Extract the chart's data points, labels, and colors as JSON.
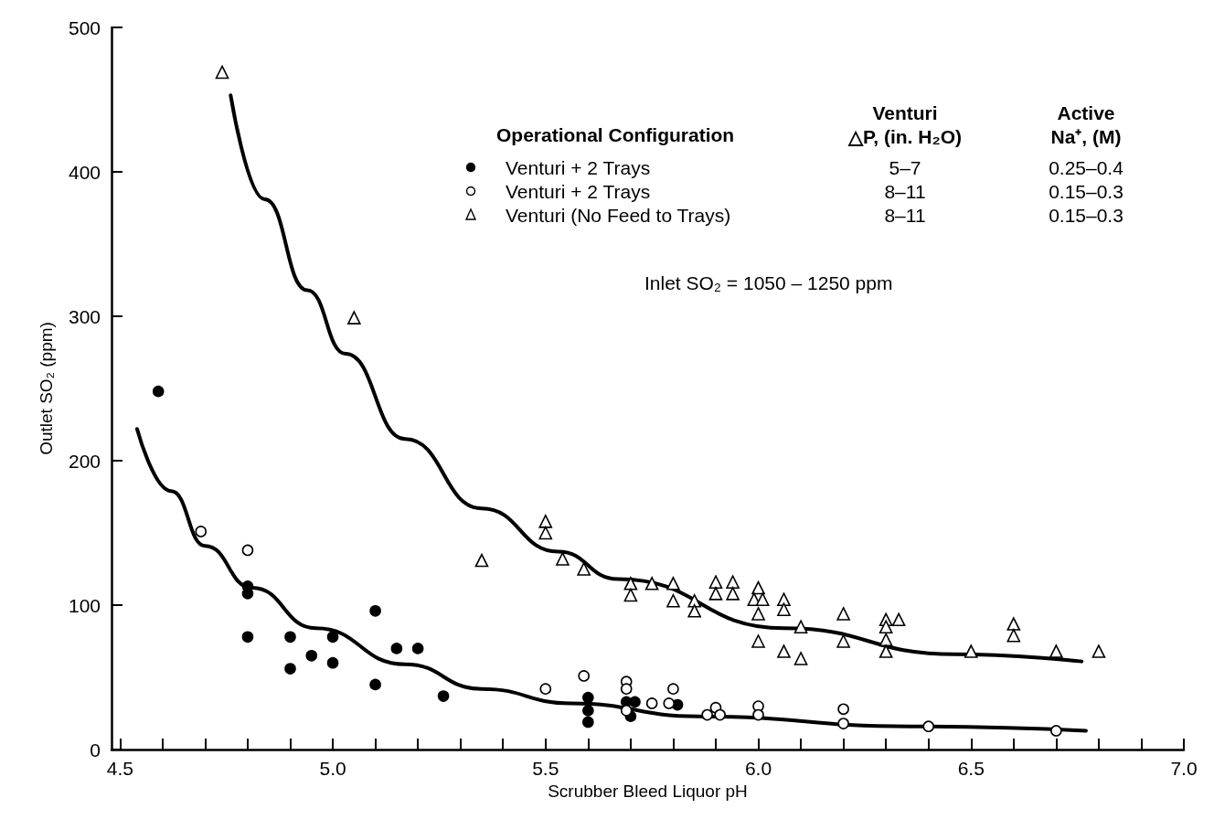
{
  "chart_data": {
    "type": "scatter",
    "xlabel": "Scrubber Bleed Liquor pH",
    "ylabel": "Outlet SO₂ (ppm)",
    "legend_title": "Operational Configuration",
    "legend": "top right",
    "annotations": [
      "Venturi\n△P, (in. H₂O)",
      "Active\nNa⁺, (M)",
      "5–7",
      "0.25–0.4",
      "8–11",
      "0.15–0.3",
      "8–11",
      "0.15–0.3",
      "Inlet SO₂ = 1050 – 1250 ppm"
    ],
    "xlim": [
      4.48,
      7.0
    ],
    "xticks": [
      {
        "value": 4.5,
        "label": "4.5"
      },
      {
        "value": 4.6,
        "label": null
      },
      {
        "value": 4.7,
        "label": null
      },
      {
        "value": 4.8,
        "label": null
      },
      {
        "value": 4.9,
        "label": null
      },
      {
        "value": 5.0,
        "label": "5.0"
      },
      {
        "value": 5.1,
        "label": null
      },
      {
        "value": 5.2,
        "label": null
      },
      {
        "value": 5.3,
        "label": null
      },
      {
        "value": 5.4,
        "label": null
      },
      {
        "value": 5.5,
        "label": "5.5"
      },
      {
        "value": 5.6,
        "label": null
      },
      {
        "value": 5.7,
        "label": null
      },
      {
        "value": 5.8,
        "label": null
      },
      {
        "value": 5.9,
        "label": null
      },
      {
        "value": 6.0,
        "label": "6.0"
      },
      {
        "value": 6.1,
        "label": null
      },
      {
        "value": 6.2,
        "label": null
      },
      {
        "value": 6.3,
        "label": null
      },
      {
        "value": 6.4,
        "label": null
      },
      {
        "value": 6.5,
        "label": "6.5"
      },
      {
        "value": 6.6,
        "label": null
      },
      {
        "value": 6.7,
        "label": null
      },
      {
        "value": 6.8,
        "label": null
      },
      {
        "value": 6.9,
        "label": null
      },
      {
        "value": 7.0,
        "label": "7.0"
      }
    ],
    "ylim": [
      0,
      500
    ],
    "yticks": [
      0,
      100,
      200,
      300,
      400,
      500
    ],
    "series": [
      {
        "name": "Venturi + 2 Trays",
        "color": "#000000",
        "marker": "circle",
        "x": [
          4.59,
          4.8,
          4.8,
          4.8,
          4.9,
          4.9,
          4.95,
          5.0,
          5.0,
          5.1,
          5.1,
          5.15,
          5.2,
          5.26,
          5.6,
          5.6,
          5.6,
          5.69,
          5.71,
          5.7,
          5.81
        ],
        "values": [
          248,
          113,
          108,
          78,
          78,
          56,
          65,
          78,
          60,
          96,
          45,
          70,
          70,
          37,
          36,
          27,
          19,
          33,
          33,
          23,
          31
        ]
      },
      {
        "name": "Venturi + 2 Trays",
        "color": "#ffffff",
        "marker": "circle",
        "x": [
          4.69,
          4.8,
          5.5,
          5.59,
          5.69,
          5.69,
          5.69,
          5.75,
          5.79,
          5.8,
          5.88,
          5.9,
          5.91,
          6.0,
          6.0,
          6.2,
          6.2,
          6.4,
          6.7
        ],
        "values": [
          151,
          138,
          42,
          51,
          47,
          42,
          27,
          32,
          32,
          42,
          24,
          29,
          24,
          30,
          24,
          28,
          18,
          16,
          13
        ]
      },
      {
        "name": "Venturi (No Feed to Trays)",
        "color": "#ffffff",
        "marker": "triangle",
        "x": [
          4.74,
          5.05,
          5.35,
          5.5,
          5.5,
          5.54,
          5.59,
          5.7,
          5.7,
          5.75,
          5.8,
          5.8,
          5.85,
          5.85,
          5.9,
          5.9,
          5.94,
          5.94,
          6.0,
          5.99,
          6.01,
          6.0,
          6.0,
          6.06,
          6.06,
          6.06,
          6.1,
          6.1,
          6.2,
          6.2,
          6.3,
          6.3,
          6.3,
          6.3,
          6.33,
          6.5,
          6.6,
          6.6,
          6.7,
          6.8
        ],
        "values": [
          469,
          299,
          131,
          158,
          150,
          132,
          125,
          115,
          107,
          115,
          115,
          103,
          103,
          96,
          116,
          108,
          116,
          108,
          112,
          104,
          104,
          94,
          75,
          104,
          97,
          68,
          85,
          63,
          94,
          75,
          90,
          85,
          76,
          68,
          90,
          68,
          87,
          79,
          68,
          68
        ]
      },
      {
        "type": "line",
        "color": "#000000",
        "line_style": "solid",
        "x": [
          4.76,
          4.84,
          4.94,
          5.03,
          5.17,
          5.35,
          5.53,
          5.67,
          6.06,
          6.46,
          6.76
        ],
        "values": [
          453,
          381,
          318,
          274,
          215,
          167,
          137,
          118,
          84,
          66,
          61
        ]
      },
      {
        "type": "line",
        "color": "#000000",
        "line_style": "solid",
        "x": [
          4.54,
          4.62,
          4.7,
          4.81,
          4.96,
          5.17,
          5.35,
          5.56,
          5.86,
          6.36,
          6.77
        ],
        "values": [
          222,
          179,
          141,
          112,
          84,
          59,
          42,
          32,
          23,
          16,
          13
        ]
      }
    ]
  }
}
